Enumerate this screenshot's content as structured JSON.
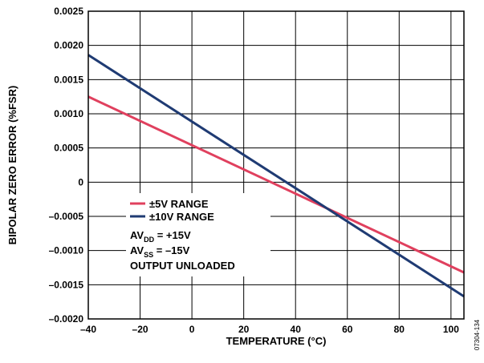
{
  "chart_data": {
    "type": "line",
    "title": "",
    "xlabel": "TEMPERATURE (°C)",
    "ylabel": "BIPOLAR ZERO ERROR (%FSR)",
    "xlim": [
      -40,
      105
    ],
    "ylim": [
      -0.002,
      0.0025
    ],
    "grid": true,
    "x_ticks": [
      -40,
      -20,
      0,
      20,
      40,
      60,
      80,
      100
    ],
    "x_tick_labels": [
      "–40",
      "–20",
      "0",
      "20",
      "40",
      "60",
      "80",
      "100"
    ],
    "y_ticks": [
      -0.002,
      -0.0015,
      -0.001,
      -0.0005,
      0,
      0.0005,
      0.001,
      0.0015,
      0.002,
      0.0025
    ],
    "y_tick_labels": [
      "–0.0020",
      "–0.0015",
      "–0.0010",
      "–0.0005",
      "0",
      "0.0005",
      "0.0010",
      "0.0015",
      "0.0020",
      "0.0025"
    ],
    "series": [
      {
        "name": "±5V RANGE",
        "color": "#e0405e",
        "x": [
          -40,
          105
        ],
        "y": [
          0.00125,
          -0.00132
        ]
      },
      {
        "name": "±10V RANGE",
        "color": "#1f3b73",
        "x": [
          -40,
          105
        ],
        "y": [
          0.00186,
          -0.00167
        ]
      }
    ],
    "legend_position": "lower-left",
    "annotations": {
      "avdd": {
        "main": "AV",
        "sub": "DD",
        "rest": " = +15V"
      },
      "avss": {
        "main": "AV",
        "sub": "SS",
        "rest": " = –15V"
      },
      "output": "OUTPUT UNLOADED"
    },
    "figure_id": "07304-134"
  }
}
